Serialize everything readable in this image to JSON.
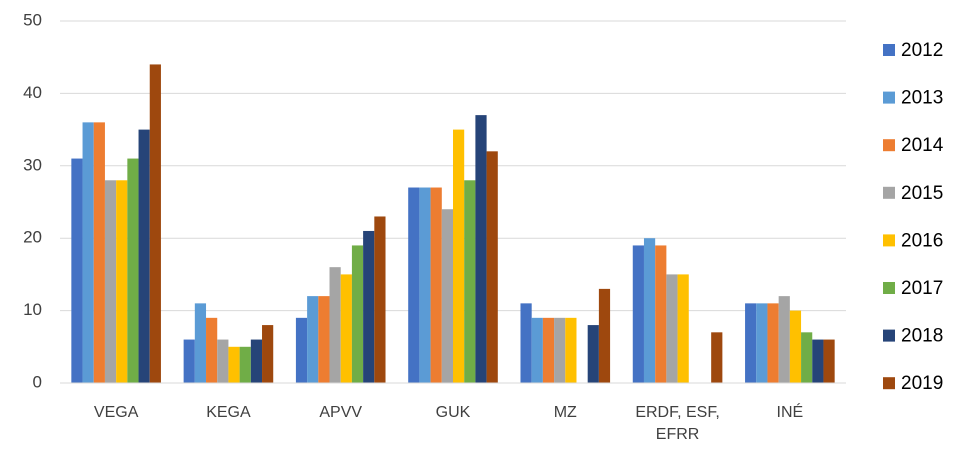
{
  "chart_data": {
    "type": "bar",
    "categories": [
      "VEGA",
      "KEGA",
      "APVV",
      "GUK",
      "MZ",
      "ERDF, ESF, EFRR",
      "INÉ"
    ],
    "series": [
      {
        "name": "2012",
        "color": "#4472c4",
        "values": [
          31,
          6,
          9,
          27,
          11,
          19,
          11
        ]
      },
      {
        "name": "2013",
        "color": "#5b9bd5",
        "values": [
          36,
          11,
          12,
          27,
          9,
          20,
          11
        ]
      },
      {
        "name": "2014",
        "color": "#ed7d31",
        "values": [
          36,
          9,
          12,
          27,
          9,
          19,
          11
        ]
      },
      {
        "name": "2015",
        "color": "#a5a5a5",
        "values": [
          28,
          6,
          16,
          24,
          9,
          15,
          12
        ]
      },
      {
        "name": "2016",
        "color": "#ffc000",
        "values": [
          28,
          5,
          15,
          35,
          9,
          15,
          10
        ]
      },
      {
        "name": "2017",
        "color": "#70ad47",
        "values": [
          31,
          5,
          19,
          28,
          null,
          null,
          7
        ]
      },
      {
        "name": "2018",
        "color": "#264478",
        "values": [
          35,
          6,
          21,
          37,
          8,
          null,
          6
        ]
      },
      {
        "name": "2019",
        "color": "#9e480e",
        "values": [
          44,
          8,
          23,
          32,
          13,
          7,
          6
        ]
      }
    ],
    "ylim": [
      0,
      50
    ],
    "yticks": [
      0,
      10,
      20,
      30,
      40,
      50
    ],
    "grid": true,
    "legend": "right"
  }
}
